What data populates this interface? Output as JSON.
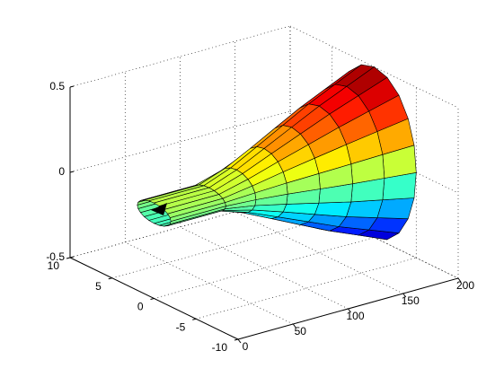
{
  "chart_data": {
    "type": "surface",
    "colormap": "jet",
    "grid": true,
    "x": [
      0,
      50,
      75,
      100,
      125,
      150,
      175,
      200
    ],
    "y_radius": [
      2,
      2,
      2.3,
      2.8,
      3.4,
      4.0,
      4.5,
      5.0
    ],
    "z_radius": [
      0.06,
      0.06,
      0.12,
      0.2,
      0.28,
      0.36,
      0.43,
      0.5
    ],
    "xlim": [
      0,
      200
    ],
    "ylim": [
      -10,
      10
    ],
    "zlim": [
      -0.5,
      0.5
    ],
    "xticks": [
      0,
      50,
      100,
      150,
      200
    ],
    "yticks": [
      -10,
      -5,
      0,
      5,
      10
    ],
    "zticks": [
      -0.5,
      0,
      0.5
    ]
  }
}
